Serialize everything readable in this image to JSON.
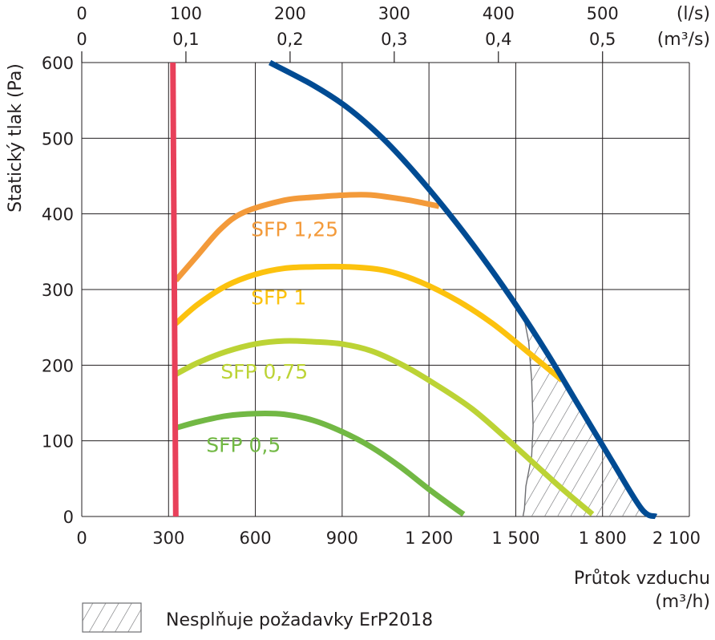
{
  "chart_data": {
    "type": "line",
    "xlabel_line1": "Průtok vzduchu",
    "xlabel_line2": "(m³/h)",
    "ylabel": "Statický tlak (Pa)",
    "x_ticks": [
      "0",
      "300",
      "600",
      "900",
      "1 200",
      "1 500",
      "1 800",
      "2 100"
    ],
    "x_tick_values": [
      0,
      300,
      600,
      900,
      1200,
      1500,
      1800,
      2100
    ],
    "y_ticks": [
      "0",
      "100",
      "200",
      "300",
      "400",
      "500",
      "600"
    ],
    "y_tick_values": [
      0,
      100,
      200,
      300,
      400,
      500,
      600
    ],
    "xlim": [
      0,
      2100
    ],
    "ylim": [
      0,
      600
    ],
    "grid": true,
    "top_axis_ls": {
      "unit": "(l/s)",
      "ticks": [
        "0",
        "100",
        "200",
        "300",
        "400",
        "500"
      ],
      "values": [
        0,
        360,
        720,
        1080,
        1440,
        1800
      ]
    },
    "top_axis_m3s": {
      "unit": "(m³/s)",
      "ticks": [
        "0",
        "0,1",
        "0,2",
        "0,3",
        "0,4",
        "0,5"
      ],
      "values": [
        0,
        360,
        720,
        1080,
        1440,
        1800
      ]
    },
    "series": [
      {
        "key": "min-flow",
        "color": "#e8405a",
        "x": [
          315,
          325
        ],
        "y": [
          600,
          0
        ]
      },
      {
        "key": "max-fan",
        "color": "#004b93",
        "x": [
          650,
          800,
          920,
          1040,
          1150,
          1270,
          1380,
          1500,
          1610,
          1720,
          1830,
          1935,
          1985
        ],
        "y": [
          600,
          570,
          540,
          500,
          455,
          400,
          345,
          280,
          215,
          145,
          75,
          10,
          0
        ]
      },
      {
        "name": "SFP 1,25",
        "color": "#f39a3a",
        "x": [
          325,
          400,
          480,
          560,
          700,
          800,
          920,
          1000,
          1100,
          1160,
          1235
        ],
        "y": [
          312,
          345,
          380,
          402,
          418,
          422,
          425,
          425,
          420,
          416,
          410
        ]
      },
      {
        "name": "SFP 1",
        "color": "#fcc20e",
        "x": [
          325,
          400,
          500,
          600,
          700,
          800,
          920,
          1050,
          1170,
          1300,
          1420,
          1540,
          1660
        ],
        "y": [
          255,
          280,
          305,
          320,
          328,
          330,
          330,
          325,
          310,
          285,
          255,
          218,
          180
        ]
      },
      {
        "name": "SFP 0,75",
        "color": "#bcd335",
        "x": [
          325,
          400,
          500,
          600,
          700,
          800,
          900,
          1000,
          1100,
          1200,
          1350,
          1500,
          1650,
          1765
        ],
        "y": [
          188,
          203,
          218,
          228,
          232,
          231,
          228,
          219,
          202,
          180,
          142,
          92,
          40,
          3
        ]
      },
      {
        "name": "SFP 0,5",
        "color": "#72b844",
        "x": [
          325,
          400,
          500,
          600,
          700,
          800,
          900,
          1000,
          1100,
          1200,
          1300,
          1320
        ],
        "y": [
          117,
          125,
          133,
          136,
          135,
          127,
          112,
          92,
          66,
          36,
          8,
          3
        ]
      }
    ],
    "series_label_pos": {
      "SFP 1,25": [
        585,
        380
      ],
      "SFP 1": [
        585,
        290
      ],
      "SFP 0,75": [
        480,
        192
      ],
      "SFP 0,5": [
        430,
        95
      ]
    },
    "hatched_region": {
      "meaning": "Nesplňuje požadavky ErP2018",
      "boundary_x": [
        1525,
        1545,
        1555,
        1560,
        1555,
        1535,
        1530,
        1525
      ],
      "boundary_y": [
        270,
        230,
        180,
        120,
        80,
        40,
        10,
        0
      ]
    },
    "legend": {
      "position": "bottom-left",
      "items": [
        {
          "label": "Nesplňuje požadavky ErP2018",
          "swatch": "hatch"
        }
      ]
    }
  }
}
